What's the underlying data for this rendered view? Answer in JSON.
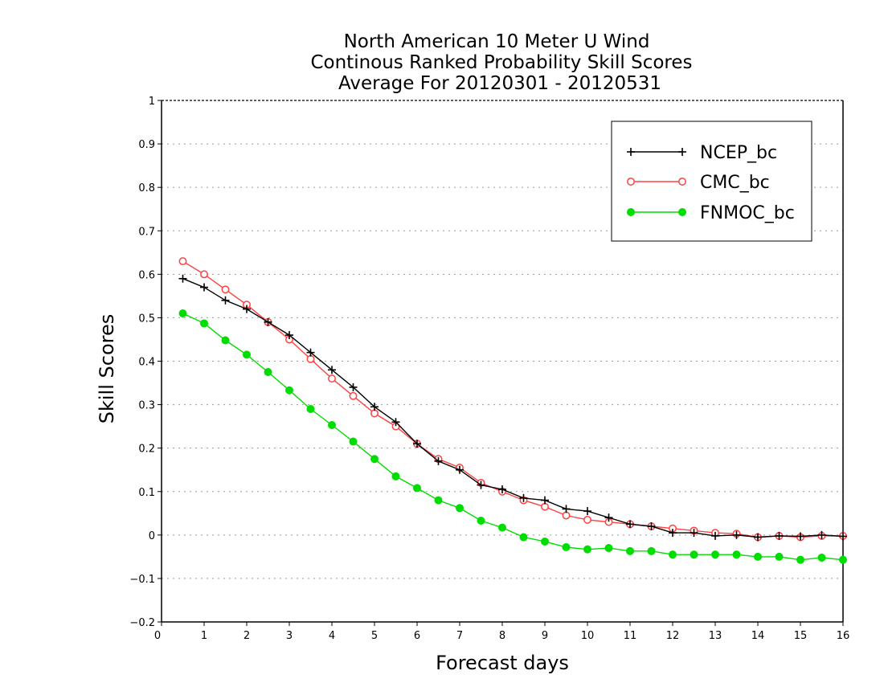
{
  "chart_data": {
    "type": "line",
    "title_lines": [
      "North American 10 Meter U Wind",
      "Continous Ranked Probability Skill Scores",
      "Average For 20120301 - 20120531"
    ],
    "xlabel": "Forecast days",
    "ylabel": "Skill Scores",
    "xlim": [
      0,
      16
    ],
    "ylim": [
      -0.2,
      1
    ],
    "x_ticks": [
      "0",
      "1",
      "2",
      "3",
      "4",
      "5",
      "6",
      "7",
      "8",
      "9",
      "10",
      "11",
      "12",
      "13",
      "14",
      "15",
      "16"
    ],
    "y_ticks": [
      "−0.2",
      "−0.1",
      "0",
      "0.1",
      "0.2",
      "0.3",
      "0.4",
      "0.5",
      "0.6",
      "0.7",
      "0.8",
      "0.9",
      "1"
    ],
    "grid": "horizontal-dotted",
    "legend_placement": "top-right",
    "x": [
      0.5,
      1,
      1.5,
      2,
      2.5,
      3,
      3.5,
      4,
      4.5,
      5,
      5.5,
      6,
      6.5,
      7,
      7.5,
      8,
      8.5,
      9,
      9.5,
      10,
      10.5,
      11,
      11.5,
      12,
      12.5,
      13,
      13.5,
      14,
      14.5,
      15,
      15.5,
      16
    ],
    "series": [
      {
        "name": "NCEP_bc",
        "color": "#000000",
        "marker": "plus",
        "values": [
          0.59,
          0.57,
          0.54,
          0.52,
          0.49,
          0.46,
          0.42,
          0.38,
          0.34,
          0.295,
          0.26,
          0.21,
          0.17,
          0.15,
          0.115,
          0.105,
          0.085,
          0.08,
          0.06,
          0.055,
          0.04,
          0.025,
          0.02,
          0.005,
          0.005,
          -0.002,
          0.0,
          -0.005,
          -0.002,
          -0.003,
          0.0,
          -0.003
        ]
      },
      {
        "name": "CMC_bc",
        "color": "#ff4040",
        "marker": "open-circle",
        "values": [
          0.63,
          0.6,
          0.565,
          0.53,
          0.49,
          0.45,
          0.405,
          0.36,
          0.32,
          0.28,
          0.25,
          0.21,
          0.175,
          0.155,
          0.12,
          0.1,
          0.08,
          0.065,
          0.045,
          0.035,
          0.03,
          0.025,
          0.02,
          0.015,
          0.01,
          0.005,
          0.003,
          -0.005,
          -0.002,
          -0.005,
          -0.002,
          -0.002
        ]
      },
      {
        "name": "FNMOC_bc",
        "color": "#00dd00",
        "marker": "filled-circle",
        "values": [
          0.51,
          0.487,
          0.448,
          0.415,
          0.375,
          0.333,
          0.29,
          0.253,
          0.215,
          0.175,
          0.135,
          0.108,
          0.08,
          0.062,
          0.033,
          0.017,
          -0.005,
          -0.015,
          -0.028,
          -0.033,
          -0.03,
          -0.037,
          -0.037,
          -0.045,
          -0.045,
          -0.045,
          -0.045,
          -0.05,
          -0.05,
          -0.057,
          -0.052,
          -0.057
        ]
      }
    ]
  }
}
